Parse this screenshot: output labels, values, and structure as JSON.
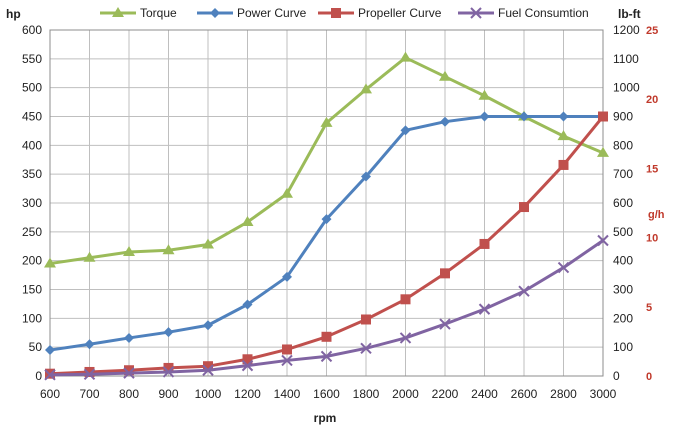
{
  "chart_data": {
    "type": "line",
    "x": [
      600,
      700,
      800,
      900,
      1000,
      1200,
      1400,
      1600,
      1800,
      2000,
      2200,
      2400,
      2600,
      2800,
      3000
    ],
    "xlabel": "rpm",
    "x_ticks": [
      "600",
      "700",
      "800",
      "900",
      "1000",
      "1200",
      "1400",
      "1600",
      "1800",
      "2000",
      "2200",
      "2400",
      "2600",
      "2800",
      "3000"
    ],
    "left_axis": {
      "label": "hp",
      "range": [
        0,
        600
      ],
      "step": 50
    },
    "right_axis": {
      "label": "lb-ft",
      "range": [
        0,
        1200
      ],
      "step": 100
    },
    "right_axis2": {
      "label": "g/h",
      "range": [
        0,
        25
      ],
      "ticks": [
        0,
        5,
        10,
        15,
        20,
        25
      ]
    },
    "grid": true,
    "legend_position": "top",
    "series": [
      {
        "name": "Torque",
        "axis": "right",
        "color": "#9bbb59",
        "marker": "triangle",
        "values": [
          390,
          410,
          430,
          436,
          456,
          534,
          632,
          878,
          994,
          1104,
          1038,
          972,
          900,
          832,
          774
        ]
      },
      {
        "name": "Power Curve",
        "axis": "left",
        "color": "#4f81bd",
        "marker": "diamond",
        "values": [
          45,
          55,
          66,
          76,
          88,
          124,
          172,
          272,
          346,
          426,
          441,
          450,
          450,
          450,
          450
        ]
      },
      {
        "name": "Propeller Curve",
        "axis": "left",
        "color": "#c0504d",
        "marker": "square",
        "values": [
          4,
          7,
          10,
          14,
          17,
          29,
          46,
          68,
          98,
          133,
          178,
          229,
          293,
          366,
          450
        ]
      },
      {
        "name": "Fuel Consumtion",
        "axis": "left",
        "color": "#8064a2",
        "marker": "x",
        "values": [
          2,
          3,
          5,
          7,
          10,
          18,
          27,
          34,
          48,
          66,
          90,
          116,
          147,
          188,
          235
        ]
      }
    ]
  }
}
